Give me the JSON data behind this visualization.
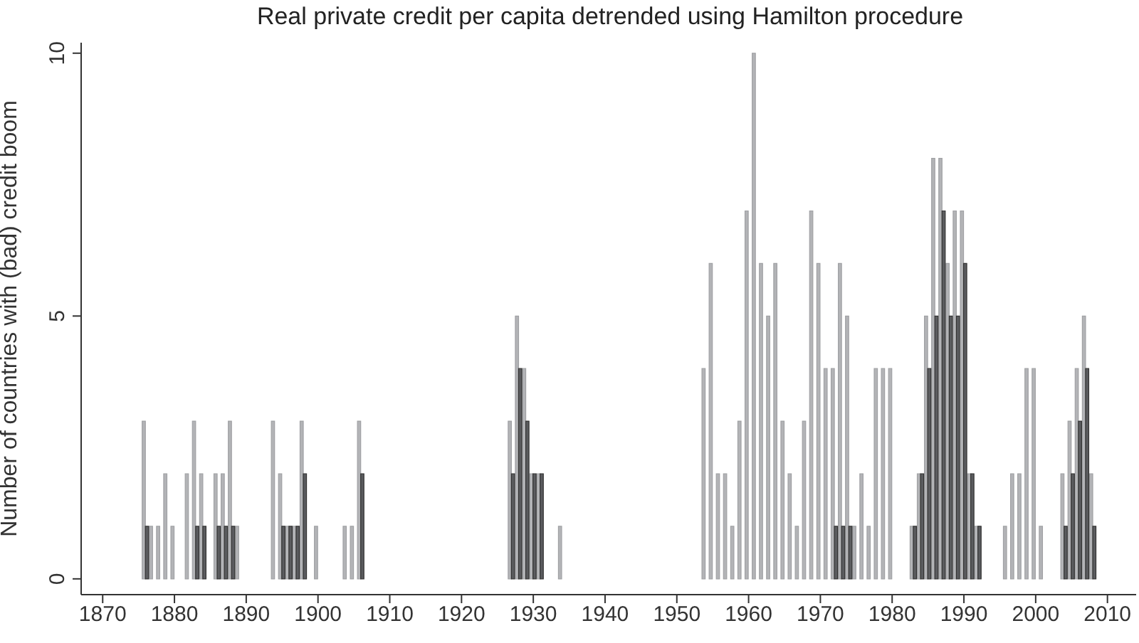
{
  "chart_data": {
    "type": "bar",
    "title": "Real private credit per capita detrended using Hamilton procedure",
    "ylabel": "Number of countries with (bad) credit boom",
    "x": [
      1876,
      1877,
      1878,
      1879,
      1880,
      1882,
      1883,
      1884,
      1886,
      1887,
      1888,
      1889,
      1894,
      1895,
      1896,
      1897,
      1898,
      1900,
      1904,
      1905,
      1906,
      1927,
      1928,
      1929,
      1930,
      1931,
      1934,
      1954,
      1955,
      1956,
      1957,
      1958,
      1959,
      1960,
      1961,
      1962,
      1963,
      1964,
      1965,
      1966,
      1967,
      1968,
      1969,
      1970,
      1971,
      1972,
      1973,
      1974,
      1975,
      1976,
      1977,
      1978,
      1979,
      1980,
      1983,
      1984,
      1985,
      1986,
      1987,
      1988,
      1989,
      1990,
      1991,
      1992,
      1996,
      1997,
      1998,
      1999,
      2000,
      2001,
      2004,
      2005,
      2006,
      2007,
      2008
    ],
    "series": [
      {
        "color": "#b3b4b7",
        "values": [
          3,
          1,
          1,
          2,
          1,
          2,
          3,
          2,
          2,
          2,
          3,
          1,
          3,
          2,
          1,
          1,
          3,
          1,
          1,
          1,
          3,
          3,
          5,
          4,
          2,
          2,
          1,
          4,
          6,
          2,
          2,
          1,
          3,
          7,
          10,
          6,
          5,
          6,
          3,
          2,
          1,
          3,
          7,
          6,
          4,
          4,
          6,
          5,
          1,
          2,
          1,
          4,
          4,
          4,
          1,
          2,
          5,
          8,
          8,
          6,
          7,
          7,
          2,
          1,
          1,
          2,
          2,
          4,
          4,
          1,
          2,
          3,
          4,
          5,
          2
        ]
      },
      {
        "color": "#5b5c5f",
        "values": [
          1,
          null,
          null,
          null,
          null,
          null,
          1,
          1,
          1,
          1,
          1,
          null,
          null,
          1,
          1,
          1,
          2,
          null,
          null,
          null,
          2,
          2,
          4,
          3,
          2,
          2,
          null,
          null,
          null,
          null,
          null,
          null,
          null,
          null,
          null,
          null,
          null,
          null,
          null,
          null,
          null,
          null,
          null,
          null,
          null,
          1,
          1,
          1,
          null,
          null,
          null,
          null,
          null,
          null,
          1,
          2,
          4,
          5,
          7,
          5,
          5,
          6,
          2,
          1,
          null,
          null,
          null,
          null,
          null,
          null,
          1,
          2,
          3,
          4,
          1
        ]
      }
    ],
    "xlim": [
      1867,
      2014
    ],
    "xticks": [
      1870,
      1880,
      1890,
      1900,
      1910,
      1920,
      1930,
      1940,
      1950,
      1960,
      1970,
      1980,
      1990,
      2000,
      2010
    ],
    "ylim": [
      -0.3,
      10.2
    ],
    "yticks": [
      0,
      5,
      10
    ],
    "grid": false,
    "legend": false
  }
}
